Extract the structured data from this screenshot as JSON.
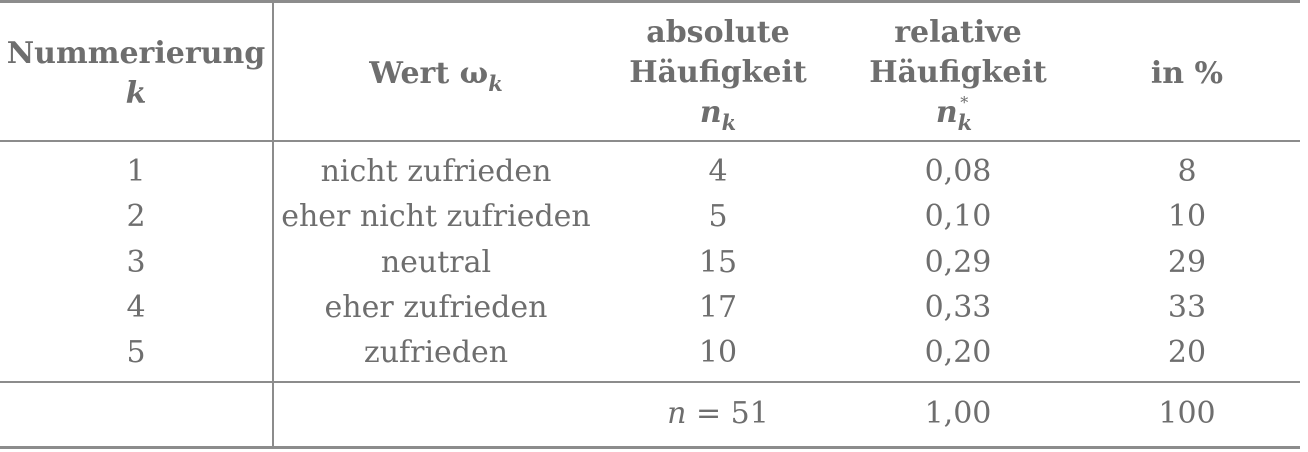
{
  "headers": {
    "col1": {
      "line1": "Nummerierung",
      "line2": "k"
    },
    "col2": {
      "line1": "Wert ω",
      "sub": "k"
    },
    "col3": {
      "line1": "absolute",
      "line2": "Häufigkeit",
      "line3": "n",
      "sub": "k"
    },
    "col4": {
      "line1": "relative",
      "line2": "Häufigkeit",
      "line3": "n",
      "sub": "k",
      "sup": "*"
    },
    "col5": {
      "line1": "in %"
    }
  },
  "rows": [
    {
      "k": "1",
      "wert": "nicht zufrieden",
      "abs": "4",
      "rel": "0,08",
      "pct": "8"
    },
    {
      "k": "2",
      "wert": "eher nicht zufrieden",
      "abs": "5",
      "rel": "0,10",
      "pct": "10"
    },
    {
      "k": "3",
      "wert": "neutral",
      "abs": "15",
      "rel": "0,29",
      "pct": "29"
    },
    {
      "k": "4",
      "wert": "eher zufrieden",
      "abs": "17",
      "rel": "0,33",
      "pct": "33"
    },
    {
      "k": "5",
      "wert": "zufrieden",
      "abs": "10",
      "rel": "0,20",
      "pct": "20"
    }
  ],
  "totals": {
    "n_symbol": "n",
    "n_value": " = 51",
    "rel": "1,00",
    "pct": "100"
  }
}
